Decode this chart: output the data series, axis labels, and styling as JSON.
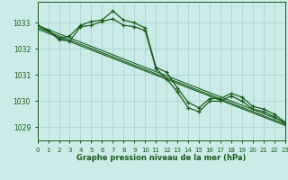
{
  "title": "Graphe pression niveau de la mer (hPa)",
  "bg_color": "#cceae7",
  "grid_color": "#aad4d0",
  "line_color": "#1a5c1a",
  "xlim": [
    0,
    23
  ],
  "ylim": [
    1028.5,
    1033.8
  ],
  "yticks": [
    1029,
    1030,
    1031,
    1032,
    1033
  ],
  "xticks": [
    0,
    1,
    2,
    3,
    4,
    5,
    6,
    7,
    8,
    9,
    10,
    11,
    12,
    13,
    14,
    15,
    16,
    17,
    18,
    19,
    20,
    21,
    22,
    23
  ],
  "series1_x": [
    0,
    1,
    2,
    3,
    4,
    5,
    6,
    7,
    8,
    9,
    10,
    11,
    12,
    13,
    14,
    15,
    16,
    17,
    18,
    19,
    20,
    21,
    22,
    23
  ],
  "series1_y": [
    1032.9,
    1032.7,
    1032.4,
    1032.5,
    1032.9,
    1033.05,
    1033.1,
    1033.45,
    1033.1,
    1033.0,
    1032.8,
    1031.3,
    1031.1,
    1030.5,
    1029.95,
    1029.75,
    1030.1,
    1030.1,
    1030.3,
    1030.15,
    1029.8,
    1029.7,
    1029.5,
    1029.2
  ],
  "series2_x": [
    0,
    1,
    2,
    3,
    4,
    5,
    6,
    7,
    8,
    9,
    10,
    11,
    12,
    13,
    14,
    15,
    16,
    17,
    18,
    19,
    20,
    21,
    22,
    23
  ],
  "series2_y": [
    1032.9,
    1032.7,
    1032.35,
    1032.3,
    1032.85,
    1032.9,
    1033.05,
    1033.15,
    1032.9,
    1032.85,
    1032.7,
    1031.25,
    1030.85,
    1030.35,
    1029.75,
    1029.6,
    1030.0,
    1030.0,
    1030.2,
    1030.0,
    1029.7,
    1029.6,
    1029.4,
    1029.15
  ],
  "trend1_x": [
    0,
    23
  ],
  "trend1_y": [
    1032.9,
    1029.2
  ],
  "trend2_x": [
    0,
    23
  ],
  "trend2_y": [
    1032.82,
    1029.12
  ],
  "trend3_x": [
    0,
    23
  ],
  "trend3_y": [
    1032.76,
    1029.07
  ]
}
